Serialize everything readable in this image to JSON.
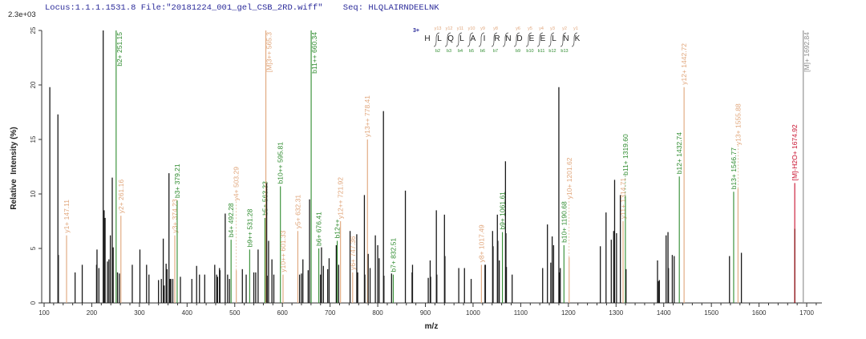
{
  "header": {
    "locus": "Locus:1.1.1.1531.8",
    "file": "File:\"20181224_001_gel_CSB_2RD.wiff\"",
    "seq_label": "Seq:",
    "seq": "HLQLAIRNDEELNK"
  },
  "peptide_map": {
    "charge": "3+",
    "letters": [
      "H",
      "L",
      "Q",
      "L",
      "A",
      "I",
      "R",
      "N",
      "D",
      "E",
      "E",
      "L",
      "N",
      "K"
    ],
    "y_ions": [
      "y13",
      "y12",
      "y11",
      "y10",
      "y9",
      "y8",
      "",
      "y6",
      "y5",
      "y4",
      "y3",
      "y2",
      "y1"
    ],
    "b_ions": [
      "b2",
      "b3",
      "b4",
      "b5",
      "b6",
      "b7",
      "",
      "b9",
      "b10",
      "b11",
      "b12",
      "b13",
      ""
    ]
  },
  "colors": {
    "unassigned": "#1a1a1a",
    "b": "#2e8b2e",
    "y": "#e0a57a",
    "precursor": "#8c8c8c",
    "precursor_loss": "#c8102e",
    "header": "#2b2b9a"
  },
  "chart_data": {
    "type": "bar",
    "title": "",
    "scale_label": "2.3e+03",
    "xlabel": "m/z",
    "ylabel": "Relative  Intensity (%)",
    "xlim": [
      90,
      1735
    ],
    "ylim": [
      0,
      25
    ],
    "x_ticks": [
      100,
      200,
      300,
      400,
      500,
      600,
      700,
      800,
      900,
      1000,
      1100,
      1200,
      1300,
      1400,
      1500,
      1600,
      1700
    ],
    "y_ticks": [
      0,
      5,
      10,
      15,
      20,
      25
    ],
    "grid": false,
    "peaks": [
      [
        112,
        19.8,
        "unassigned",
        ""
      ],
      [
        129,
        17.3,
        "unassigned",
        ""
      ],
      [
        130,
        4.4,
        "unassigned",
        ""
      ],
      [
        147.11,
        6.2,
        "y",
        "y1+ 147.11"
      ],
      [
        165,
        2.8,
        "unassigned",
        ""
      ],
      [
        180,
        3.5,
        "unassigned",
        ""
      ],
      [
        210,
        3.5,
        "unassigned",
        ""
      ],
      [
        211,
        4.9,
        "unassigned",
        ""
      ],
      [
        215,
        3.2,
        "unassigned",
        ""
      ],
      [
        224,
        25,
        "unassigned",
        ""
      ],
      [
        226,
        8.5,
        "unassigned",
        ""
      ],
      [
        227,
        5.2,
        "unassigned",
        ""
      ],
      [
        228,
        7.8,
        "unassigned",
        ""
      ],
      [
        233,
        3.8,
        "unassigned",
        ""
      ],
      [
        236,
        4,
        "unassigned",
        ""
      ],
      [
        239,
        6.2,
        "unassigned",
        ""
      ],
      [
        243,
        11.5,
        "unassigned",
        ""
      ],
      [
        245,
        5.1,
        "unassigned",
        ""
      ],
      [
        251.15,
        25,
        "b",
        "b2+ 251.15"
      ],
      [
        254,
        2.8,
        "unassigned",
        ""
      ],
      [
        258,
        2.7,
        "unassigned",
        ""
      ],
      [
        261.16,
        8,
        "y",
        "y2+ 261.16"
      ],
      [
        285,
        3.5,
        "unassigned",
        ""
      ],
      [
        301,
        4.9,
        "unassigned",
        ""
      ],
      [
        315,
        3.5,
        "unassigned",
        ""
      ],
      [
        320,
        2.6,
        "unassigned",
        ""
      ],
      [
        340,
        2.1,
        "unassigned",
        ""
      ],
      [
        346,
        2.2,
        "unassigned",
        ""
      ],
      [
        350,
        5.9,
        "unassigned",
        ""
      ],
      [
        352,
        1.6,
        "unassigned",
        ""
      ],
      [
        356,
        3.6,
        "unassigned",
        ""
      ],
      [
        358,
        3.1,
        "unassigned",
        ""
      ],
      [
        362,
        11.9,
        "unassigned",
        ""
      ],
      [
        364,
        2.2,
        "unassigned",
        ""
      ],
      [
        366,
        2.2,
        "unassigned",
        ""
      ],
      [
        370,
        2.2,
        "unassigned",
        ""
      ],
      [
        374.23,
        6.2,
        "y",
        "y3+ 374.23"
      ],
      [
        379.21,
        9.4,
        "b",
        "b3+ 379.21"
      ],
      [
        386,
        2.4,
        "unassigned",
        ""
      ],
      [
        410,
        2.2,
        "unassigned",
        ""
      ],
      [
        420,
        3.4,
        "unassigned",
        ""
      ],
      [
        426,
        2.6,
        "unassigned",
        ""
      ],
      [
        437,
        2.6,
        "unassigned",
        ""
      ],
      [
        458,
        3.5,
        "unassigned",
        ""
      ],
      [
        462,
        2.6,
        "unassigned",
        ""
      ],
      [
        464,
        2.4,
        "unassigned",
        ""
      ],
      [
        468,
        3.2,
        "unassigned",
        ""
      ],
      [
        469,
        3,
        "unassigned",
        ""
      ],
      [
        480,
        8.2,
        "unassigned",
        ""
      ],
      [
        485,
        2.6,
        "unassigned",
        ""
      ],
      [
        489,
        2.2,
        "unassigned",
        ""
      ],
      [
        492.28,
        5.8,
        "b",
        "b4+ 492.28"
      ],
      [
        503.29,
        3,
        "y",
        "y4+ 503.29"
      ],
      [
        516,
        3.1,
        "unassigned",
        ""
      ],
      [
        524,
        2.6,
        "unassigned",
        ""
      ],
      [
        531.28,
        4.9,
        "b",
        "b9++ 531.28"
      ],
      [
        540,
        2.8,
        "unassigned",
        ""
      ],
      [
        544,
        2.8,
        "unassigned",
        ""
      ],
      [
        549,
        4.9,
        "unassigned",
        ""
      ],
      [
        563.33,
        7.8,
        "b",
        "b5+ 563.33"
      ],
      [
        565.3,
        25,
        "y",
        "[M]3++ 565.3"
      ],
      [
        567,
        11,
        "unassigned",
        ""
      ],
      [
        568,
        2.5,
        "unassigned",
        ""
      ],
      [
        571,
        5.7,
        "unassigned",
        ""
      ],
      [
        578,
        4,
        "unassigned",
        ""
      ],
      [
        582,
        2.6,
        "unassigned",
        ""
      ],
      [
        595.81,
        10.7,
        "b",
        "b10++ 595.81"
      ],
      [
        601.33,
        2.6,
        "y",
        "y10++ 601.33"
      ],
      [
        632.31,
        6.6,
        "y",
        "y5+ 632.31"
      ],
      [
        636,
        2.6,
        "unassigned",
        ""
      ],
      [
        640,
        2.7,
        "unassigned",
        ""
      ],
      [
        643,
        4,
        "unassigned",
        ""
      ],
      [
        654,
        3,
        "unassigned",
        ""
      ],
      [
        657,
        9.5,
        "unassigned",
        ""
      ],
      [
        660.34,
        25,
        "b",
        "b11++ 660.34"
      ],
      [
        676.41,
        5,
        "b",
        "b6+ 676.41"
      ],
      [
        680,
        2.6,
        "unassigned",
        ""
      ],
      [
        682,
        5.1,
        "unassigned",
        ""
      ],
      [
        686,
        3.4,
        "unassigned",
        ""
      ],
      [
        695,
        3.1,
        "unassigned",
        ""
      ],
      [
        698,
        4.1,
        "unassigned",
        ""
      ],
      [
        713,
        5.3,
        "unassigned",
        ""
      ],
      [
        715,
        5.7,
        "b",
        "b12++"
      ],
      [
        718,
        3.5,
        "unassigned",
        ""
      ],
      [
        721.92,
        7.5,
        "y",
        "y12++ 721.92"
      ],
      [
        742,
        6.6,
        "unassigned",
        ""
      ],
      [
        747.36,
        2.8,
        "y",
        "y6+ 747.36"
      ],
      [
        756,
        6.3,
        "unassigned",
        ""
      ],
      [
        758,
        2.8,
        "unassigned",
        ""
      ],
      [
        772,
        9.9,
        "unassigned",
        ""
      ],
      [
        773,
        2.6,
        "unassigned",
        ""
      ],
      [
        778.41,
        15,
        "y",
        "y13++ 778.41"
      ],
      [
        780,
        4.5,
        "unassigned",
        ""
      ],
      [
        784,
        3.2,
        "unassigned",
        ""
      ],
      [
        795,
        6.2,
        "unassigned",
        ""
      ],
      [
        800,
        5.3,
        "unassigned",
        ""
      ],
      [
        803,
        4.1,
        "unassigned",
        ""
      ],
      [
        812,
        17.6,
        "unassigned",
        ""
      ],
      [
        813,
        2.5,
        "unassigned",
        ""
      ],
      [
        829,
        2.7,
        "unassigned",
        ""
      ],
      [
        832.51,
        2.6,
        "b",
        "b7+ 832.51"
      ],
      [
        858,
        10.3,
        "unassigned",
        ""
      ],
      [
        872,
        2.8,
        "unassigned",
        ""
      ],
      [
        873,
        3.5,
        "unassigned",
        ""
      ],
      [
        906,
        2.3,
        "unassigned",
        ""
      ],
      [
        910,
        3.9,
        "unassigned",
        ""
      ],
      [
        911,
        2.4,
        "unassigned",
        ""
      ],
      [
        923,
        8.5,
        "unassigned",
        ""
      ],
      [
        924,
        2.6,
        "unassigned",
        ""
      ],
      [
        940,
        8.1,
        "unassigned",
        ""
      ],
      [
        941,
        4.3,
        "unassigned",
        ""
      ],
      [
        970,
        3.2,
        "unassigned",
        ""
      ],
      [
        982,
        3.2,
        "unassigned",
        ""
      ],
      [
        996,
        2.2,
        "unassigned",
        ""
      ],
      [
        1017.49,
        3.5,
        "y",
        "y8+ 1017.49"
      ],
      [
        1025,
        3.5,
        "unassigned",
        ""
      ],
      [
        1026,
        3.5,
        "unassigned",
        ""
      ],
      [
        1041,
        6.6,
        "unassigned",
        ""
      ],
      [
        1042,
        5.2,
        "unassigned",
        ""
      ],
      [
        1051,
        8.1,
        "unassigned",
        ""
      ],
      [
        1052,
        5.7,
        "unassigned",
        ""
      ],
      [
        1055,
        3.9,
        "unassigned",
        ""
      ],
      [
        1061.61,
        6.5,
        "b",
        "b9+ 1061.61"
      ],
      [
        1068,
        13,
        "unassigned",
        ""
      ],
      [
        1069,
        6.4,
        "unassigned",
        ""
      ],
      [
        1070,
        3.3,
        "unassigned",
        ""
      ],
      [
        1082,
        2.6,
        "unassigned",
        ""
      ],
      [
        1146,
        3.2,
        "unassigned",
        ""
      ],
      [
        1156,
        7.2,
        "unassigned",
        ""
      ],
      [
        1163,
        3.7,
        "unassigned",
        ""
      ],
      [
        1166,
        6.1,
        "unassigned",
        ""
      ],
      [
        1169,
        5.3,
        "unassigned",
        ""
      ],
      [
        1180,
        19.8,
        "unassigned",
        ""
      ],
      [
        1181,
        2.8,
        "unassigned",
        ""
      ],
      [
        1183,
        3.2,
        "unassigned",
        ""
      ],
      [
        1190.68,
        5.3,
        "b",
        "b10+ 1190.68"
      ],
      [
        1201.62,
        4.2,
        "y",
        "y10+ 1201.62"
      ],
      [
        1267,
        5.2,
        "unassigned",
        ""
      ],
      [
        1279,
        8.3,
        "unassigned",
        ""
      ],
      [
        1290,
        5.8,
        "unassigned",
        ""
      ],
      [
        1295,
        6.6,
        "unassigned",
        ""
      ],
      [
        1297,
        11.3,
        "unassigned",
        ""
      ],
      [
        1301,
        6.4,
        "unassigned",
        ""
      ],
      [
        1309,
        9.9,
        "unassigned",
        ""
      ],
      [
        1314.71,
        7.5,
        "y",
        "y11+ 1314.71"
      ],
      [
        1319.6,
        9.8,
        "b",
        "b11+ 1319.60"
      ],
      [
        1321,
        3.1,
        "unassigned",
        ""
      ],
      [
        1387,
        3.9,
        "unassigned",
        ""
      ],
      [
        1389,
        2,
        "unassigned",
        ""
      ],
      [
        1391,
        2.1,
        "unassigned",
        ""
      ],
      [
        1405,
        6.2,
        "unassigned",
        ""
      ],
      [
        1409,
        6.5,
        "unassigned",
        ""
      ],
      [
        1410,
        3.2,
        "unassigned",
        ""
      ],
      [
        1418,
        4.4,
        "unassigned",
        ""
      ],
      [
        1422,
        4.3,
        "unassigned",
        ""
      ],
      [
        1432.74,
        11.6,
        "b",
        "b12+ 1432.74"
      ],
      [
        1442.72,
        19.8,
        "y",
        "y12+ 1442.72"
      ],
      [
        1538,
        4.3,
        "unassigned",
        ""
      ],
      [
        1546.77,
        10.2,
        "b",
        "b13+ 1546.77"
      ],
      [
        1555.88,
        10.5,
        "y",
        "y13+ 1555.88"
      ],
      [
        1563,
        4.6,
        "unassigned",
        ""
      ],
      [
        1674.92,
        11,
        "precursor_loss",
        "[M]-H2O+ 1674.92"
      ],
      [
        1675,
        6.8,
        "unassigned_dark_red",
        ""
      ],
      [
        1692.84,
        25,
        "precursor",
        "[M]+ 1692.84"
      ]
    ]
  }
}
